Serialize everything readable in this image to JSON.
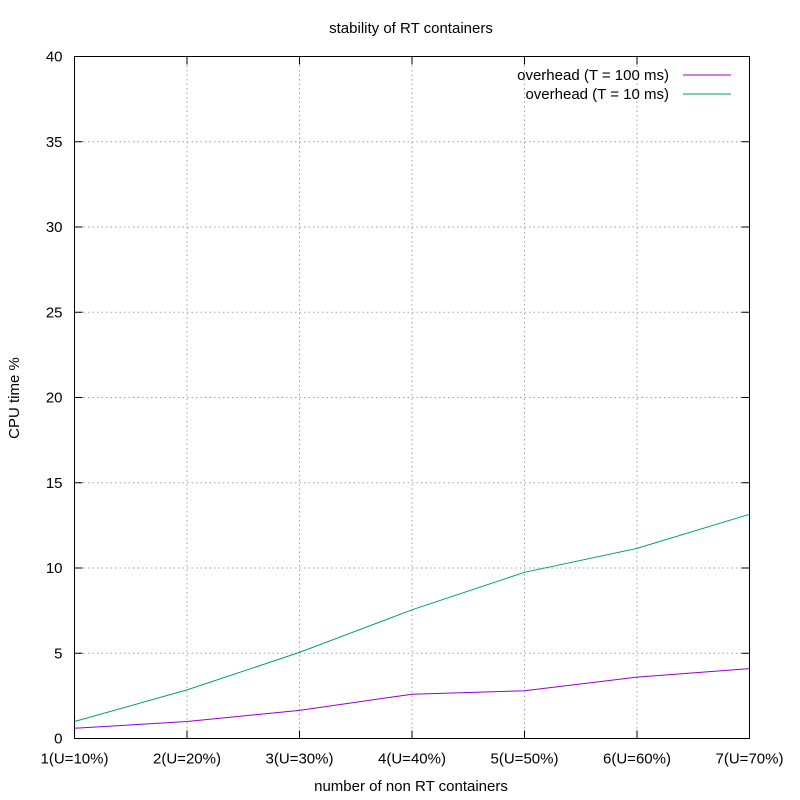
{
  "chart_data": {
    "type": "line",
    "title": "stability of RT containers",
    "xlabel": "number of non RT containers",
    "ylabel": "CPU time %",
    "categories": [
      "1(U=10%)",
      "2(U=20%)",
      "3(U=30%)",
      "4(U=40%)",
      "5(U=50%)",
      "6(U=60%)",
      "7(U=70%)"
    ],
    "ylim": [
      0,
      40
    ],
    "yticks": [
      0,
      5,
      10,
      15,
      20,
      25,
      30,
      35,
      40
    ],
    "grid": true,
    "legend_position": "top-right",
    "series": [
      {
        "name": "overhead (T = 100 ms)",
        "color": "#9400d3",
        "values": [
          0.6,
          1.0,
          1.65,
          2.6,
          2.8,
          3.6,
          4.1
        ]
      },
      {
        "name": "overhead (T = 10 ms)",
        "color": "#009e73",
        "values": [
          1.0,
          2.85,
          5.05,
          7.55,
          9.75,
          11.15,
          13.15
        ]
      }
    ]
  }
}
